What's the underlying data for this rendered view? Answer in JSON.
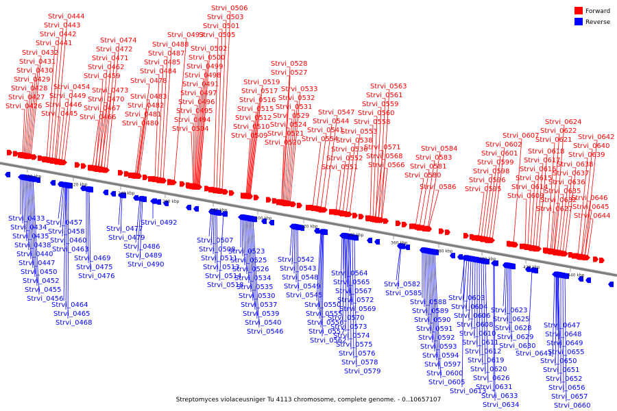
{
  "caption": "Streptomyces violaceusniger Tu 4113 chromosome, complete genome. - 0..10657107",
  "legend": [
    {
      "label": "Forward",
      "color": "#ff0000"
    },
    {
      "label": "Reverse",
      "color": "#0000ff"
    }
  ],
  "colors": {
    "forward": "#ff0000",
    "reverse": "#0000ff",
    "axis": "#7f7f7f"
  },
  "ticks": [
    "200 kbp",
    "220 kbp",
    "240 kbp",
    "260 kbp",
    "280 kbp",
    "300 kbp",
    "320 kbp",
    "340 kbp",
    "360 kbp",
    "380 kbp",
    "400 kbp",
    "420 kbp",
    "440 kbp"
  ],
  "forward_labels": [
    "Strvi_0444",
    "Strvi_0443",
    "Strvi_0442",
    "Strvi_0441",
    "Strvi_0432",
    "Strvi_0431",
    "Strvi_0430",
    "Strvi_0429",
    "Strvi_0428",
    "Strvi_0427",
    "Strvi_0426",
    "Strvi_0454",
    "Strvi_0449",
    "Strvi_0446",
    "Strvi_0445",
    "Strvi_0474",
    "Strvi_0472",
    "Strvi_0471",
    "Strvi_0462",
    "Strvi_0459",
    "Strvi_0473",
    "Strvi_0470",
    "Strvi_0467",
    "Strvi_0466",
    "Strvi_0488",
    "Strvi_0487",
    "Strvi_0485",
    "Strvi_0484",
    "Strvi_0478",
    "Strvi_0483",
    "Strvi_0482",
    "Strvi_0481",
    "Strvi_0480",
    "Strvi_0506",
    "Strvi_0503",
    "Strvi_0501",
    "Strvi_0505",
    "Strvi_0493",
    "Strvi_0502",
    "Strvi_0500",
    "Strvi_0499",
    "Strvi_0498",
    "Strvi_0491",
    "Strvi_0497",
    "Strvi_0496",
    "Strvi_0495",
    "Strvi_0494",
    "Strvi_0504",
    "Strvi_0528",
    "Strvi_0527",
    "Strvi_0519",
    "Strvi_0517",
    "Strvi_0516",
    "Strvi_0515",
    "Strvi_0512",
    "Strvi_0510",
    "Strvi_0509",
    "Strvi_0533",
    "Strvi_0532",
    "Strvi_0531",
    "Strvi_0529",
    "Strvi_0524",
    "Strvi_0521",
    "Strvi_0520",
    "Strvi_0563",
    "Strvi_0561",
    "Strvi_0559",
    "Strvi_0560",
    "Strvi_0558",
    "Strvi_0547",
    "Strvi_0544",
    "Strvi_0541",
    "Strvi_0554",
    "Strvi_0553",
    "Strvi_0538",
    "Strvi_0536",
    "Strvi_0552",
    "Strvi_0551",
    "Strvi_0571",
    "Strvi_0568",
    "Strvi_0566",
    "Strvi_0584",
    "Strvi_0583",
    "Strvi_0581",
    "Strvi_0580",
    "Strvi_0586",
    "Strvi_0607",
    "Strvi_0602",
    "Strvi_0601",
    "Strvi_0599",
    "Strvi_0598",
    "Strvi_0596",
    "Strvi_0595",
    "Strvi_0624",
    "Strvi_0622",
    "Strvi_0621",
    "Strvi_0618",
    "Strvi_0617",
    "Strvi_0616",
    "Strvi_0615",
    "Strvi_0614",
    "Strvi_0609",
    "Strvi_0642",
    "Strvi_0640",
    "Strvi_0639",
    "Strvi_0638",
    "Strvi_0637",
    "Strvi_0636",
    "Strvi_0635",
    "Strvi_0632",
    "Strvi_0627",
    "Strvi_0646",
    "Strvi_0645",
    "Strvi_0644"
  ],
  "reverse_labels": [
    "Strvi_0433",
    "Strvi_0434",
    "Strvi_0435",
    "Strvi_0438",
    "Strvi_0440",
    "Strvi_0447",
    "Strvi_0450",
    "Strvi_0452",
    "Strvi_0455",
    "Strvi_0456",
    "Strvi_0464",
    "Strvi_0465",
    "Strvi_0468",
    "Strvi_0457",
    "Strvi_0458",
    "Strvi_0460",
    "Strvi_0463",
    "Strvi_0469",
    "Strvi_0475",
    "Strvi_0476",
    "Strvi_0477",
    "Strvi_0479",
    "Strvi_0486",
    "Strvi_0489",
    "Strvi_0490",
    "Strvi_0492",
    "Strvi_0507",
    "Strvi_0508",
    "Strvi_0511",
    "Strvi_0513",
    "Strvi_0514",
    "Strvi_0518",
    "Strvi_0523",
    "Strvi_0525",
    "Strvi_0526",
    "Strvi_0534",
    "Strvi_0535",
    "Strvi_0530",
    "Strvi_0537",
    "Strvi_0539",
    "Strvi_0540",
    "Strvi_0546",
    "Strvi_0542",
    "Strvi_0543",
    "Strvi_0548",
    "Strvi_0549",
    "Strvi_0545",
    "Strvi_0550",
    "Strvi_0555",
    "Strvi_0556",
    "Strvi_0557",
    "Strvi_0562",
    "Strvi_0564",
    "Strvi_0565",
    "Strvi_0567",
    "Strvi_0572",
    "Strvi_0569",
    "Strvi_0570",
    "Strvi_0573",
    "Strvi_0574",
    "Strvi_0575",
    "Strvi_0576",
    "Strvi_0578",
    "Strvi_0579",
    "Strvi_0582",
    "Strvi_0585",
    "Strvi_0588",
    "Strvi_0589",
    "Strvi_0590",
    "Strvi_0591",
    "Strvi_0592",
    "Strvi_0593",
    "Strvi_0594",
    "Strvi_0597",
    "Strvi_0600",
    "Strvi_0605",
    "Strvi_0613",
    "Strvi_0603",
    "Strvi_0604",
    "Strvi_0606",
    "Strvi_0608",
    "Strvi_0610",
    "Strvi_0611",
    "Strvi_0612",
    "Strvi_0619",
    "Strvi_0620",
    "Strvi_0626",
    "Strvi_0631",
    "Strvi_0633",
    "Strvi_0634",
    "Strvi_0623",
    "Strvi_0625",
    "Strvi_0628",
    "Strvi_0629",
    "Strvi_0630",
    "Strvi_0641",
    "Strvi_0647",
    "Strvi_0648",
    "Strvi_0649",
    "Strvi_0655",
    "Strvi_0650",
    "Strvi_0651",
    "Strvi_0652",
    "Strvi_0656",
    "Strvi_0657",
    "Strvi_0660"
  ]
}
